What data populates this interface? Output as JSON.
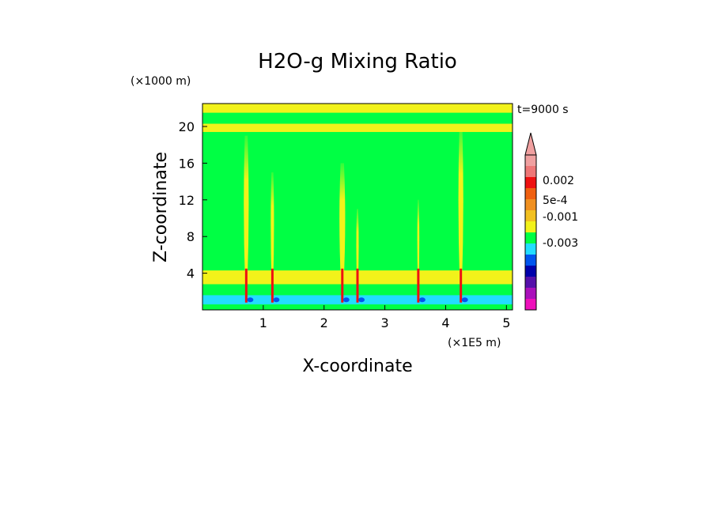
{
  "chart_data": {
    "type": "heatmap",
    "title": "H2O-g Mixing Ratio",
    "xlabel": "X-coordinate",
    "ylabel": "Z-coordinate",
    "x_unit": "(×1E5 m)",
    "y_unit": "(×1000 m)",
    "time_label": "t=9000 s",
    "xlim": [
      0,
      5.1
    ],
    "ylim": [
      0,
      22.5
    ],
    "x_ticks": [
      1,
      2,
      3,
      4,
      5
    ],
    "y_ticks": [
      4,
      8,
      12,
      16,
      20
    ],
    "background_level_color": "#00ff44",
    "bands": [
      {
        "z0": 21.5,
        "z1": 22.5,
        "color": "#f2f21a"
      },
      {
        "z0": 19.4,
        "z1": 20.3,
        "color": "#f2f21a"
      },
      {
        "z0": 2.8,
        "z1": 4.3,
        "color": "#f2f21a"
      },
      {
        "z0": 0.6,
        "z1": 1.6,
        "color": "#22ddff"
      }
    ],
    "plumes": [
      {
        "x": 0.72,
        "z_top": 19.0,
        "width": 0.12,
        "core": true
      },
      {
        "x": 1.15,
        "z_top": 15.0,
        "width": 0.08,
        "core": true
      },
      {
        "x": 2.3,
        "z_top": 16.0,
        "width": 0.14,
        "core": true
      },
      {
        "x": 2.55,
        "z_top": 11.0,
        "width": 0.06,
        "core": true
      },
      {
        "x": 3.55,
        "z_top": 12.0,
        "width": 0.05,
        "core": true
      },
      {
        "x": 4.25,
        "z_top": 20.0,
        "width": 0.12,
        "core": true
      }
    ],
    "colorbar": {
      "levels": [
        {
          "color": "#f0a0a0"
        },
        {
          "color": "#ee7777"
        },
        {
          "color": "#ee1111"
        },
        {
          "color": "#f06010"
        },
        {
          "color": "#f09020"
        },
        {
          "color": "#f2c020"
        },
        {
          "color": "#f2f21a"
        },
        {
          "color": "#00ff44"
        },
        {
          "color": "#22ddff"
        },
        {
          "color": "#0055ee"
        },
        {
          "color": "#0000aa"
        },
        {
          "color": "#5510aa"
        },
        {
          "color": "#aa10bb"
        },
        {
          "color": "#ee10bb"
        }
      ],
      "labels": [
        "0.002",
        "5e-4",
        "-0.001",
        "-0.003"
      ]
    }
  }
}
